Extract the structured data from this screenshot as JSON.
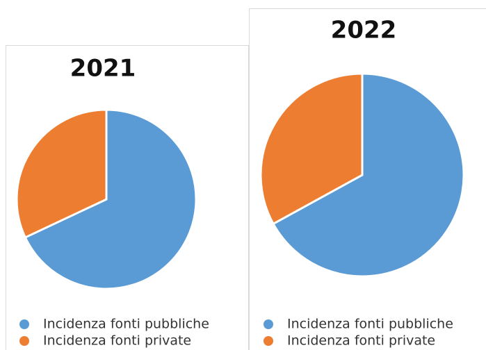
{
  "chart_data": [
    {
      "type": "pie",
      "title": "2021",
      "categories": [
        "Incidenza fonti pubbliche",
        "Incidenza fonti private"
      ],
      "values": [
        68,
        32
      ],
      "colors": [
        "#5b9bd5",
        "#ed7d31"
      ]
    },
    {
      "type": "pie",
      "title": "2022",
      "categories": [
        "Incidenza fonti pubbliche",
        "Incidenza fonti private"
      ],
      "values": [
        67,
        33
      ],
      "colors": [
        "#5b9bd5",
        "#ed7d31"
      ]
    }
  ]
}
